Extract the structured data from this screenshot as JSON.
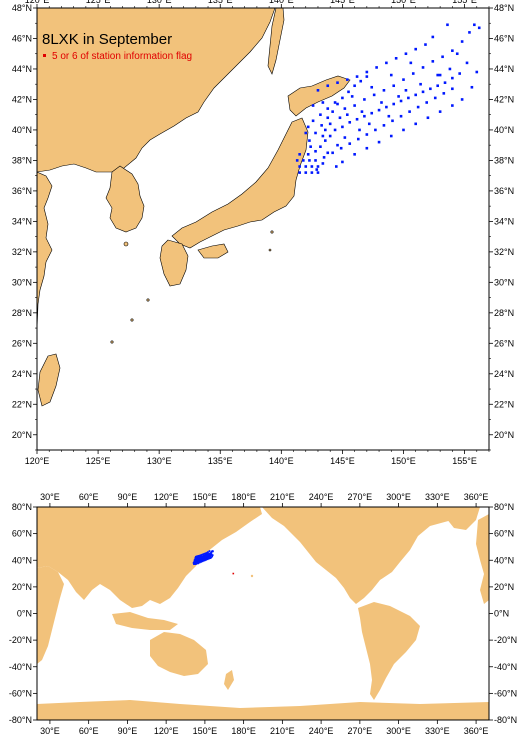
{
  "colors": {
    "land": "#f2c27b",
    "ocean": "#ffffff",
    "station": "#0018ff",
    "flagged": "#e00000",
    "frame": "#000000"
  },
  "top_map": {
    "title": "8LXK in September",
    "legend_label": "5 or 6 of station information flag",
    "lon_range": [
      120,
      157
    ],
    "lat_range": [
      19,
      48
    ],
    "lon_ticks": [
      "120°E",
      "125°E",
      "130°E",
      "135°E",
      "140°E",
      "145°E",
      "150°E",
      "155°E"
    ],
    "lat_ticks": [
      "20°N",
      "22°N",
      "24°N",
      "26°N",
      "28°N",
      "30°N",
      "32°N",
      "34°N",
      "36°N",
      "38°N",
      "40°N",
      "42°N",
      "44°N",
      "46°N",
      "48°N"
    ]
  },
  "bottom_map": {
    "lon_range": [
      20,
      370
    ],
    "lat_range": [
      -80,
      80
    ],
    "lon_ticks": [
      "30°E",
      "60°E",
      "90°E",
      "120°E",
      "150°E",
      "180°E",
      "210°E",
      "240°E",
      "270°E",
      "300°E",
      "330°E",
      "360°E"
    ],
    "lat_ticks": [
      "80°N",
      "60°N",
      "40°N",
      "20°N",
      "0°N",
      "-20°N",
      "-40°N",
      "-60°N",
      "-80°N"
    ]
  },
  "chart_data": {
    "type": "scatter",
    "title": "8LXK in September",
    "series": [
      {
        "name": "",
        "values": [
          [
            141.5,
            37.2
          ],
          [
            142.0,
            37.2
          ],
          [
            142.5,
            37.2
          ],
          [
            143.0,
            37.2
          ],
          [
            141.5,
            37.6
          ],
          [
            142.0,
            37.6
          ],
          [
            142.5,
            37.6
          ],
          [
            143.0,
            37.6
          ],
          [
            141.3,
            38.0
          ],
          [
            141.8,
            38.0
          ],
          [
            142.3,
            38.0
          ],
          [
            142.8,
            38.0
          ],
          [
            141.5,
            38.4
          ],
          [
            142.2,
            38.4
          ],
          [
            142.8,
            38.6
          ],
          [
            143.2,
            38.9
          ],
          [
            143.6,
            39.3
          ],
          [
            144.0,
            39.6
          ],
          [
            144.4,
            40.0
          ],
          [
            145.0,
            40.2
          ],
          [
            145.6,
            40.5
          ],
          [
            146.2,
            40.7
          ],
          [
            146.8,
            40.9
          ],
          [
            147.4,
            41.1
          ],
          [
            148.0,
            41.3
          ],
          [
            148.6,
            41.5
          ],
          [
            149.2,
            41.7
          ],
          [
            149.8,
            41.9
          ],
          [
            150.4,
            42.1
          ],
          [
            151.0,
            42.3
          ],
          [
            151.6,
            42.5
          ],
          [
            152.2,
            42.7
          ],
          [
            152.8,
            42.9
          ],
          [
            153.4,
            43.1
          ],
          [
            154.0,
            43.4
          ],
          [
            154.6,
            43.7
          ],
          [
            142.3,
            39.3
          ],
          [
            142.8,
            39.8
          ],
          [
            143.3,
            40.3
          ],
          [
            143.8,
            40.8
          ],
          [
            144.2,
            41.2
          ],
          [
            144.6,
            41.7
          ],
          [
            145.0,
            42.1
          ],
          [
            145.5,
            42.5
          ],
          [
            146.0,
            42.9
          ],
          [
            146.5,
            43.2
          ],
          [
            147.0,
            43.5
          ],
          [
            142.6,
            40.6
          ],
          [
            143.2,
            41.0
          ],
          [
            143.8,
            41.4
          ],
          [
            144.4,
            41.8
          ],
          [
            145.2,
            41.4
          ],
          [
            146.0,
            41.6
          ],
          [
            146.8,
            42.0
          ],
          [
            147.6,
            42.3
          ],
          [
            148.4,
            42.6
          ],
          [
            149.2,
            42.9
          ],
          [
            150.0,
            43.3
          ],
          [
            150.8,
            43.7
          ],
          [
            151.6,
            44.1
          ],
          [
            152.4,
            44.5
          ],
          [
            153.2,
            44.8
          ],
          [
            154.0,
            45.2
          ],
          [
            154.8,
            45.8
          ],
          [
            155.4,
            46.4
          ],
          [
            155.8,
            46.9
          ],
          [
            156.2,
            46.7
          ],
          [
            143.5,
            38.2
          ],
          [
            144.2,
            38.5
          ],
          [
            144.9,
            38.8
          ],
          [
            145.6,
            39.1
          ],
          [
            146.3,
            39.4
          ],
          [
            147.0,
            39.7
          ],
          [
            147.7,
            40.0
          ],
          [
            148.4,
            40.3
          ],
          [
            149.1,
            40.6
          ],
          [
            149.8,
            40.9
          ],
          [
            150.5,
            41.2
          ],
          [
            151.2,
            41.5
          ],
          [
            151.9,
            41.8
          ],
          [
            152.6,
            42.1
          ],
          [
            153.3,
            42.4
          ],
          [
            154.0,
            42.7
          ],
          [
            143.0,
            42.6
          ],
          [
            143.8,
            42.9
          ],
          [
            144.6,
            43.1
          ],
          [
            145.4,
            43.3
          ],
          [
            146.2,
            43.5
          ],
          [
            147.0,
            43.8
          ],
          [
            147.8,
            44.1
          ],
          [
            148.6,
            44.4
          ],
          [
            149.4,
            44.7
          ],
          [
            150.2,
            45.0
          ],
          [
            151.0,
            45.3
          ],
          [
            151.8,
            45.6
          ],
          [
            148.0,
            39.2
          ],
          [
            149.0,
            39.6
          ],
          [
            150.0,
            40.0
          ],
          [
            151.0,
            40.4
          ],
          [
            152.0,
            40.8
          ],
          [
            153.0,
            41.2
          ],
          [
            154.0,
            41.6
          ],
          [
            154.8,
            42.0
          ],
          [
            146.0,
            38.4
          ],
          [
            147.0,
            38.8
          ],
          [
            145.0,
            37.9
          ],
          [
            144.5,
            37.6
          ],
          [
            152.4,
            46.1
          ],
          [
            153.6,
            46.9
          ],
          [
            154.4,
            45.0
          ],
          [
            153.0,
            43.6
          ],
          [
            150.6,
            44.4
          ],
          [
            149.0,
            43.6
          ],
          [
            147.4,
            42.8
          ],
          [
            145.8,
            42.2
          ],
          [
            144.8,
            40.8
          ],
          [
            143.4,
            39.6
          ],
          [
            142.4,
            38.9
          ],
          [
            142.9,
            37.4
          ],
          [
            143.4,
            37.8
          ],
          [
            143.6,
            40.0
          ],
          [
            144.0,
            40.4
          ],
          [
            145.4,
            41.0
          ],
          [
            146.6,
            41.2
          ],
          [
            148.2,
            41.8
          ],
          [
            149.6,
            42.2
          ],
          [
            151.4,
            43.0
          ],
          [
            152.8,
            43.6
          ],
          [
            153.8,
            44.0
          ],
          [
            155.2,
            44.4
          ],
          [
            156.0,
            43.8
          ],
          [
            155.6,
            42.8
          ],
          [
            150.2,
            42.6
          ],
          [
            148.8,
            40.9
          ],
          [
            147.2,
            40.4
          ],
          [
            146.4,
            40.0
          ],
          [
            145.2,
            39.5
          ],
          [
            144.6,
            39.0
          ],
          [
            143.8,
            38.5
          ],
          [
            142.0,
            39.8
          ],
          [
            142.2,
            40.2
          ],
          [
            142.6,
            41.6
          ],
          [
            143.4,
            41.8
          ]
        ]
      },
      {
        "name": "5 or 6 of station information flag",
        "values": []
      }
    ]
  }
}
